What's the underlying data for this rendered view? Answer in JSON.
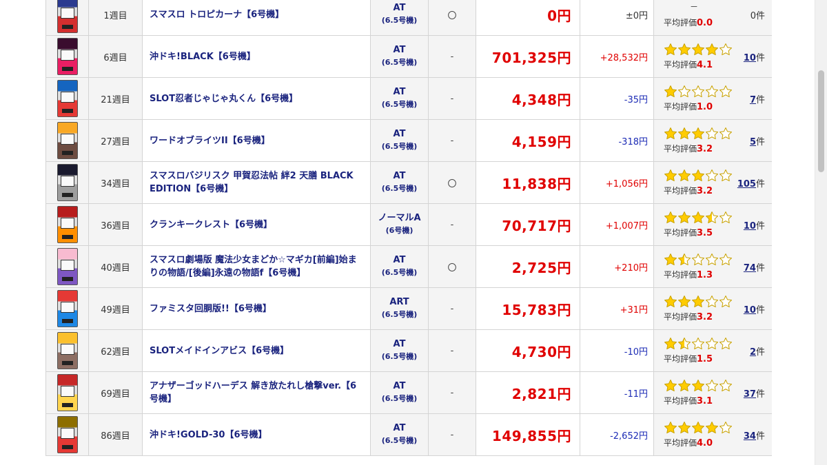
{
  "rows": [
    {
      "week": "1週目",
      "name": "スマスロ トロピカーナ【6号機】",
      "type": "AT",
      "type_sub": "(6.5号機)",
      "mark": "〇",
      "amount": "0円",
      "diff": "±0円",
      "diff_sign": "zero",
      "stars": 0,
      "avg_label": "平均評価",
      "avg_value": "0.0",
      "count": "",
      "count_suffix": "0件",
      "dash": "－",
      "img_colors": [
        "#2b3a8f",
        "#d32f2f"
      ]
    },
    {
      "week": "6週目",
      "name": "沖ドキ!BLACK【6号機】",
      "type": "AT",
      "type_sub": "(6.5号機)",
      "mark": "-",
      "amount": "701,325円",
      "diff": "+28,532円",
      "diff_sign": "pos",
      "stars": 4,
      "avg_label": "平均評価",
      "avg_value": "4.1",
      "count": "10",
      "count_suffix": "件",
      "img_colors": [
        "#3a0d2e",
        "#e91e63"
      ]
    },
    {
      "week": "21週目",
      "name": "SLOT忍者じゃじゃ丸くん【6号機】",
      "type": "AT",
      "type_sub": "(6.5号機)",
      "mark": "-",
      "amount": "4,348円",
      "diff": "-35円",
      "diff_sign": "neg",
      "stars": 1,
      "avg_label": "平均評価",
      "avg_value": "1.0",
      "count": "7",
      "count_suffix": "件",
      "img_colors": [
        "#1565c0",
        "#e53935"
      ]
    },
    {
      "week": "27週目",
      "name": "ワードオブライツII【6号機】",
      "type": "AT",
      "type_sub": "(6.5号機)",
      "mark": "-",
      "amount": "4,159円",
      "diff": "-318円",
      "diff_sign": "neg",
      "stars": 3,
      "avg_label": "平均評価",
      "avg_value": "3.2",
      "count": "5",
      "count_suffix": "件",
      "img_colors": [
        "#f9a825",
        "#6d4c41"
      ]
    },
    {
      "week": "34週目",
      "name": "スマスロバジリスク 甲賀忍法帖 絆2 天膳 BLACK EDITION【6号機】",
      "type": "AT",
      "type_sub": "(6.5号機)",
      "mark": "〇",
      "amount": "11,838円",
      "diff": "+1,056円",
      "diff_sign": "pos",
      "stars": 3,
      "avg_label": "平均評価",
      "avg_value": "3.2",
      "count": "105",
      "count_suffix": "件",
      "img_colors": [
        "#1a1a2e",
        "#9e9e9e"
      ]
    },
    {
      "week": "36週目",
      "name": "クランキークレスト【6号機】",
      "type": "ノーマルA",
      "type_sub": "(6号機)",
      "mark": "-",
      "amount": "70,717円",
      "diff": "+1,007円",
      "diff_sign": "pos",
      "stars": 3.5,
      "avg_label": "平均評価",
      "avg_value": "3.5",
      "count": "10",
      "count_suffix": "件",
      "img_colors": [
        "#b71c1c",
        "#ff8f00"
      ]
    },
    {
      "week": "40週目",
      "name": "スマスロ劇場版 魔法少女まどか☆マギカ[前編]始まりの物語/[後編]永遠の物語f【6号機】",
      "type": "AT",
      "type_sub": "(6.5号機)",
      "mark": "〇",
      "amount": "2,725円",
      "diff": "+210円",
      "diff_sign": "pos",
      "stars": 1.5,
      "avg_label": "平均評価",
      "avg_value": "1.3",
      "count": "74",
      "count_suffix": "件",
      "img_colors": [
        "#f8bbd0",
        "#7e57c2"
      ]
    },
    {
      "week": "49週目",
      "name": "ファミスタ回胴版!!【6号機】",
      "type": "ART",
      "type_sub": "(6.5号機)",
      "mark": "-",
      "amount": "15,783円",
      "diff": "+31円",
      "diff_sign": "pos",
      "stars": 3,
      "avg_label": "平均評価",
      "avg_value": "3.2",
      "count": "10",
      "count_suffix": "件",
      "img_colors": [
        "#e53935",
        "#1e88e5"
      ]
    },
    {
      "week": "62週目",
      "name": "SLOTメイドインアビス【6号機】",
      "type": "AT",
      "type_sub": "(6.5号機)",
      "mark": "-",
      "amount": "4,730円",
      "diff": "-10円",
      "diff_sign": "neg",
      "stars": 1.5,
      "avg_label": "平均評価",
      "avg_value": "1.5",
      "count": "2",
      "count_suffix": "件",
      "img_colors": [
        "#fbc02d",
        "#8d6e63"
      ]
    },
    {
      "week": "69週目",
      "name": "アナザーゴッドハーデス 解き放たれし槍撃ver.【6号機】",
      "type": "AT",
      "type_sub": "(6.5号機)",
      "mark": "-",
      "amount": "2,821円",
      "diff": "-11円",
      "diff_sign": "neg",
      "stars": 3,
      "avg_label": "平均評価",
      "avg_value": "3.1",
      "count": "37",
      "count_suffix": "件",
      "img_colors": [
        "#c62828",
        "#ffd54f"
      ]
    },
    {
      "week": "86週目",
      "name": "沖ドキ!GOLD-30【6号機】",
      "type": "AT",
      "type_sub": "(6.5号機)",
      "mark": "-",
      "amount": "149,855円",
      "diff": "-2,652円",
      "diff_sign": "neg",
      "stars": 4,
      "avg_label": "平均評価",
      "avg_value": "4.0",
      "count": "34",
      "count_suffix": "件",
      "img_colors": [
        "#8d6e00",
        "#e53935"
      ]
    }
  ]
}
